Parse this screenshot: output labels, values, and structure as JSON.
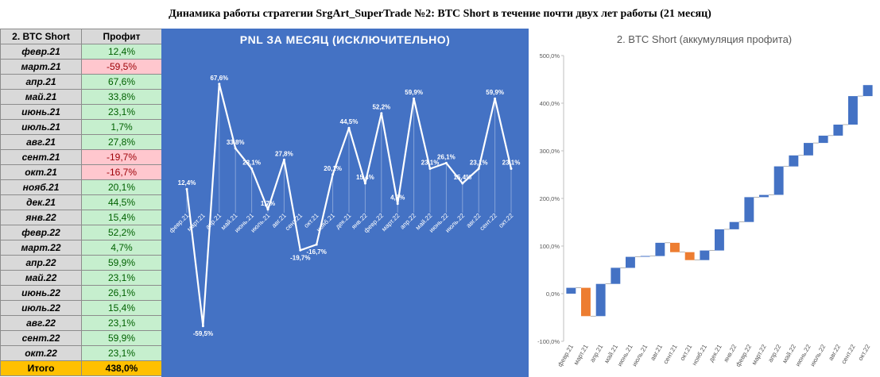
{
  "title": "Динамика работы стратегии SrgArt_SuperTrade №2: BTC Short в течение почти двух лет работы (21 месяц)",
  "table": {
    "header": [
      "2. BTC Short",
      "Профит"
    ],
    "rows": [
      {
        "month": "февр.21",
        "value": "12,4%",
        "neg": false
      },
      {
        "month": "март.21",
        "value": "-59,5%",
        "neg": true
      },
      {
        "month": "апр.21",
        "value": "67,6%",
        "neg": false
      },
      {
        "month": "май.21",
        "value": "33,8%",
        "neg": false
      },
      {
        "month": "июнь.21",
        "value": "23,1%",
        "neg": false
      },
      {
        "month": "июль.21",
        "value": "1,7%",
        "neg": false
      },
      {
        "month": "авг.21",
        "value": "27,8%",
        "neg": false
      },
      {
        "month": "сент.21",
        "value": "-19,7%",
        "neg": true
      },
      {
        "month": "окт.21",
        "value": "-16,7%",
        "neg": true
      },
      {
        "month": "нояб.21",
        "value": "20,1%",
        "neg": false
      },
      {
        "month": "дек.21",
        "value": "44,5%",
        "neg": false
      },
      {
        "month": "янв.22",
        "value": "15,4%",
        "neg": false
      },
      {
        "month": "февр.22",
        "value": "52,2%",
        "neg": false
      },
      {
        "month": "март.22",
        "value": "4,7%",
        "neg": false
      },
      {
        "month": "апр.22",
        "value": "59,9%",
        "neg": false
      },
      {
        "month": "май.22",
        "value": "23,1%",
        "neg": false
      },
      {
        "month": "июнь.22",
        "value": "26,1%",
        "neg": false
      },
      {
        "month": "июль.22",
        "value": "15,4%",
        "neg": false
      },
      {
        "month": "авг.22",
        "value": "23,1%",
        "neg": false
      },
      {
        "month": "сент.22",
        "value": "59,9%",
        "neg": false
      },
      {
        "month": "окт.22",
        "value": "23,1%",
        "neg": false
      }
    ],
    "total": {
      "label": "Итого",
      "value": "438,0%"
    }
  },
  "colors": {
    "pnl_bg": "#4472c4",
    "line": "#ffffff",
    "wf_up": "#4472c4",
    "wf_down": "#ed7d31",
    "pos_bg": "#c6efce",
    "neg_bg": "#ffc7ce",
    "total_bg": "#ffc000"
  },
  "chart_data": [
    {
      "type": "line",
      "title": "PNL ЗА МЕСЯЦ (ИСКЛЮЧИТЕЛЬНО)",
      "categories": [
        "февр.21",
        "март.21",
        "апр.21",
        "май.21",
        "июнь.21",
        "июль.21",
        "авг.21",
        "сент.21",
        "окт.21",
        "нояб.21",
        "дек.21",
        "янв.22",
        "февр.22",
        "март.22",
        "апр.22",
        "май.22",
        "июнь.22",
        "июль.22",
        "авг.22",
        "сент.22",
        "окт.22"
      ],
      "values": [
        12.4,
        -59.5,
        67.6,
        33.8,
        23.1,
        1.7,
        27.8,
        -19.7,
        -16.7,
        20.1,
        44.5,
        15.4,
        52.2,
        4.7,
        59.9,
        23.1,
        26.1,
        15.4,
        23.1,
        59.9,
        23.1
      ],
      "labels": [
        "12,4%",
        "-59,5%",
        "67,6%",
        "33,8%",
        "23,1%",
        "1,7%",
        "27,8%",
        "-19,7%",
        "-16,7%",
        "20,1%",
        "44,5%",
        "15,4%",
        "52,2%",
        "4,7%",
        "59,9%",
        "23,1%",
        "26,1%",
        "15,4%",
        "23,1%",
        "59,9%",
        "23,1%"
      ],
      "ylim": [
        -70,
        80
      ],
      "grid": false,
      "legend": "none"
    },
    {
      "type": "bar",
      "subtype": "waterfall",
      "title": "2. BTC Short (аккумуляция профита)",
      "categories": [
        "февр.21",
        "март.21",
        "апр.21",
        "май.21",
        "июнь.21",
        "июль.21",
        "авг.21",
        "сент.21",
        "окт.21",
        "нояб.21",
        "дек.21",
        "янв.22",
        "февр.22",
        "март.22",
        "апр.22",
        "май.22",
        "июнь.22",
        "июль.22",
        "авг.22",
        "сент.22",
        "окт.22"
      ],
      "values": [
        12.4,
        -59.5,
        67.6,
        33.8,
        23.1,
        1.7,
        27.8,
        -19.7,
        -16.7,
        20.1,
        44.5,
        15.4,
        52.2,
        4.7,
        59.9,
        23.1,
        26.1,
        15.4,
        23.1,
        59.9,
        23.1
      ],
      "ylim": [
        -100,
        500
      ],
      "yticks": [
        -100,
        0,
        100,
        200,
        300,
        400,
        500
      ],
      "ytick_labels": [
        "-100,0%",
        "0,0%",
        "100,0%",
        "200,0%",
        "300,0%",
        "400,0%",
        "500,0%"
      ],
      "grid": false,
      "legend": "none"
    }
  ]
}
